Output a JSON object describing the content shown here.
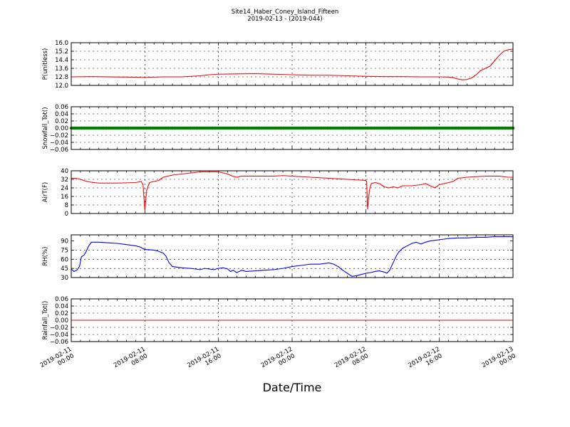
{
  "figure": {
    "title_line1": "Site14_Haber_Coney_Island_Fifteen",
    "title_line2": "2019-02-13 - (2019-044)",
    "xlabel": "Date/Time"
  },
  "chart_data": {
    "x_ticks": [
      {
        "line1": "2019-02-11",
        "line2": "00:00",
        "hours": 0
      },
      {
        "line1": "2019-02-11",
        "line2": "08:00",
        "hours": 8
      },
      {
        "line1": "2019-02-11",
        "line2": "16:00",
        "hours": 16
      },
      {
        "line1": "2019-02-12",
        "line2": "00:00",
        "hours": 24
      },
      {
        "line1": "2019-02-12",
        "line2": "08:00",
        "hours": 32
      },
      {
        "line1": "2019-02-12",
        "line2": "16:00",
        "hours": 40
      },
      {
        "line1": "2019-02-13",
        "line2": "00:00",
        "hours": 48
      }
    ],
    "xlim_hours": [
      0,
      48
    ],
    "panels": [
      {
        "type": "line",
        "ylabel": "P(unitless)",
        "ylim": [
          12.0,
          16.0
        ],
        "yticks": [
          12.0,
          12.8,
          13.6,
          14.4,
          15.2,
          16.0
        ],
        "ytick_labels": [
          "12.0",
          "12.8",
          "13.6",
          "14.4",
          "15.2",
          "16.0"
        ],
        "color": "#ff0000",
        "marker": false,
        "points": [
          [
            0,
            12.8
          ],
          [
            2,
            12.82
          ],
          [
            6,
            12.78
          ],
          [
            8,
            12.75
          ],
          [
            10,
            12.8
          ],
          [
            12,
            12.8
          ],
          [
            14,
            12.9
          ],
          [
            15,
            13.0
          ],
          [
            16,
            13.05
          ],
          [
            18,
            13.08
          ],
          [
            20,
            13.1
          ],
          [
            22,
            13.05
          ],
          [
            24,
            13.0
          ],
          [
            26,
            12.95
          ],
          [
            28,
            12.95
          ],
          [
            30,
            12.9
          ],
          [
            32,
            12.85
          ],
          [
            34,
            12.82
          ],
          [
            36,
            12.82
          ],
          [
            38,
            12.8
          ],
          [
            40,
            12.8
          ],
          [
            41,
            12.78
          ],
          [
            41.5,
            12.72
          ],
          [
            42,
            12.6
          ],
          [
            42.5,
            12.52
          ],
          [
            43,
            12.55
          ],
          [
            43.5,
            12.7
          ],
          [
            44,
            13.0
          ],
          [
            44.5,
            13.4
          ],
          [
            45,
            13.6
          ],
          [
            45.5,
            13.8
          ],
          [
            46,
            14.3
          ],
          [
            46.5,
            14.8
          ],
          [
            47,
            15.2
          ],
          [
            47.5,
            15.35
          ],
          [
            48,
            15.4
          ]
        ]
      },
      {
        "type": "scatter",
        "ylabel": "Snowfall_Tot()",
        "ylim": [
          -0.06,
          0.06
        ],
        "yticks": [
          -0.06,
          -0.04,
          -0.02,
          0.0,
          0.02,
          0.04,
          0.06
        ],
        "ytick_labels": [
          "−0.06",
          "−0.04",
          "−0.02",
          "0.00",
          "0.02",
          "0.04",
          "0.06"
        ],
        "color": "#008000",
        "marker": true,
        "points": [
          [
            0,
            0
          ],
          [
            48,
            0
          ]
        ]
      },
      {
        "type": "line",
        "ylabel": "AirT(F)",
        "ylim": [
          0,
          40
        ],
        "yticks": [
          0,
          8,
          16,
          24,
          32,
          40
        ],
        "ytick_labels": [
          "0",
          "8",
          "16",
          "24",
          "32",
          "40"
        ],
        "color": "#ff0000",
        "marker": false,
        "points": [
          [
            0,
            33
          ],
          [
            0.5,
            33
          ],
          [
            1,
            32
          ],
          [
            1.5,
            30.5
          ],
          [
            2,
            29.5
          ],
          [
            3,
            28.5
          ],
          [
            5,
            28.5
          ],
          [
            7,
            29
          ],
          [
            7.6,
            30
          ],
          [
            7.8,
            27
          ],
          [
            8,
            3
          ],
          [
            8.2,
            22
          ],
          [
            8.5,
            29
          ],
          [
            9,
            30
          ],
          [
            9.5,
            31
          ],
          [
            10,
            34
          ],
          [
            10.5,
            35
          ],
          [
            11,
            36
          ],
          [
            12,
            37
          ],
          [
            13,
            38
          ],
          [
            14,
            39
          ],
          [
            15,
            39
          ],
          [
            16,
            39
          ],
          [
            16.5,
            38
          ],
          [
            17,
            37
          ],
          [
            17.5,
            35
          ],
          [
            18,
            34
          ],
          [
            18.5,
            35
          ],
          [
            20,
            35
          ],
          [
            22,
            35
          ],
          [
            23,
            35.5
          ],
          [
            24,
            35
          ],
          [
            26,
            34
          ],
          [
            28,
            33
          ],
          [
            30,
            32
          ],
          [
            31,
            31.5
          ],
          [
            32,
            31
          ],
          [
            32.1,
            30
          ],
          [
            32.2,
            4
          ],
          [
            32.4,
            22
          ],
          [
            32.6,
            28
          ],
          [
            33,
            29
          ],
          [
            33.5,
            28
          ],
          [
            34,
            25
          ],
          [
            34.5,
            24
          ],
          [
            35,
            25
          ],
          [
            35.5,
            24
          ],
          [
            36,
            26
          ],
          [
            37,
            26
          ],
          [
            38,
            27
          ],
          [
            38.5,
            28
          ],
          [
            39,
            26
          ],
          [
            39.5,
            24
          ],
          [
            40,
            27
          ],
          [
            40.5,
            28
          ],
          [
            41,
            29
          ],
          [
            41.5,
            30
          ],
          [
            42,
            33
          ],
          [
            43,
            34
          ],
          [
            44,
            34.5
          ],
          [
            45,
            35
          ],
          [
            46,
            35
          ],
          [
            46.5,
            35
          ],
          [
            47,
            34.5
          ],
          [
            47.5,
            34
          ],
          [
            48,
            34
          ]
        ]
      },
      {
        "type": "line",
        "ylabel": "RH(%)",
        "ylim": [
          30,
          100
        ],
        "yticks": [
          30,
          45,
          60,
          75,
          90
        ],
        "ytick_labels": [
          "30",
          "45",
          "60",
          "75",
          "90"
        ],
        "color": "#0000ff",
        "marker": false,
        "points": [
          [
            0,
            44
          ],
          [
            0.3,
            40
          ],
          [
            0.6,
            42
          ],
          [
            0.9,
            48
          ],
          [
            1.1,
            64
          ],
          [
            1.4,
            67
          ],
          [
            1.6,
            72
          ],
          [
            1.9,
            82
          ],
          [
            2.2,
            88
          ],
          [
            3,
            88
          ],
          [
            4,
            87
          ],
          [
            5,
            86
          ],
          [
            6,
            84
          ],
          [
            7,
            82
          ],
          [
            7.5,
            80
          ],
          [
            8,
            76
          ],
          [
            9,
            75
          ],
          [
            9.5,
            73
          ],
          [
            10,
            70
          ],
          [
            10.3,
            65
          ],
          [
            10.6,
            55
          ],
          [
            11,
            48
          ],
          [
            12,
            46
          ],
          [
            13,
            45
          ],
          [
            14,
            43
          ],
          [
            14.5,
            45
          ],
          [
            15,
            44
          ],
          [
            15.5,
            43
          ],
          [
            16,
            45
          ],
          [
            16.5,
            46
          ],
          [
            17,
            44
          ],
          [
            17.3,
            40
          ],
          [
            17.6,
            42
          ],
          [
            18,
            38
          ],
          [
            18.5,
            42
          ],
          [
            19,
            40
          ],
          [
            20,
            41
          ],
          [
            21,
            42
          ],
          [
            22,
            43
          ],
          [
            23,
            45
          ],
          [
            24,
            48
          ],
          [
            25,
            50
          ],
          [
            26,
            52
          ],
          [
            27,
            52
          ],
          [
            28,
            54
          ],
          [
            28.5,
            52
          ],
          [
            29,
            48
          ],
          [
            29.5,
            42
          ],
          [
            30,
            37
          ],
          [
            30.5,
            32
          ],
          [
            31,
            33
          ],
          [
            31.5,
            35
          ],
          [
            32,
            37
          ],
          [
            32.5,
            38
          ],
          [
            33,
            40
          ],
          [
            33.5,
            41
          ],
          [
            34,
            39
          ],
          [
            34.3,
            37
          ],
          [
            34.6,
            42
          ],
          [
            35,
            55
          ],
          [
            35.3,
            65
          ],
          [
            35.6,
            72
          ],
          [
            36,
            78
          ],
          [
            36.5,
            82
          ],
          [
            37,
            86
          ],
          [
            37.5,
            88
          ],
          [
            38,
            85
          ],
          [
            38.5,
            88
          ],
          [
            39,
            90
          ],
          [
            40,
            92
          ],
          [
            41,
            94
          ],
          [
            42,
            95
          ],
          [
            43,
            95
          ],
          [
            44,
            96
          ],
          [
            45,
            96
          ],
          [
            46,
            97
          ],
          [
            47,
            97
          ],
          [
            48,
            97
          ]
        ]
      },
      {
        "type": "line",
        "ylabel": "Rainfall_Tot()",
        "ylim": [
          -0.06,
          0.06
        ],
        "yticks": [
          -0.06,
          -0.04,
          -0.02,
          0.0,
          0.02,
          0.04,
          0.06
        ],
        "ytick_labels": [
          "−0.06",
          "−0.04",
          "−0.02",
          "0.00",
          "0.02",
          "0.04",
          "0.06"
        ],
        "color": "#ff0000",
        "marker": false,
        "points": [
          [
            0,
            0
          ],
          [
            48,
            0
          ]
        ]
      }
    ],
    "grid": true
  }
}
